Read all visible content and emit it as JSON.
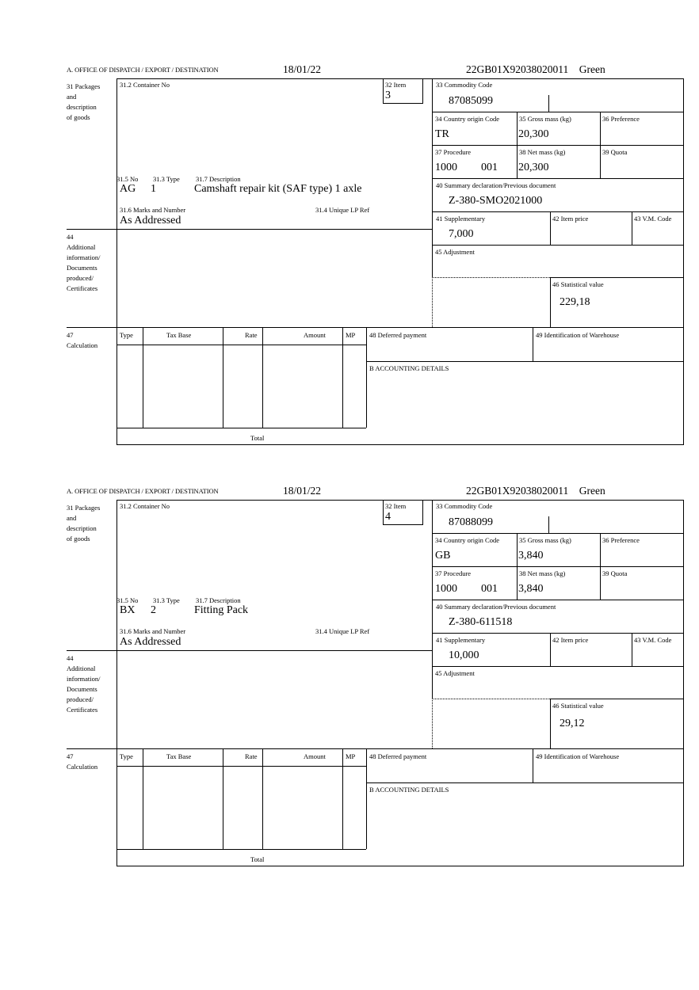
{
  "labels": {
    "office": "A.  OFFICE OF DISPATCH / EXPORT / DESTINATION",
    "packages": "31 Packages\nand\ndescription\nof goods",
    "container": "31.2 Container No",
    "item": "32 Item",
    "commodity": "33 Commodity Code",
    "country": "34 Country origin Code",
    "gross": "35 Gross mass (kg)",
    "preference": "36 Preference",
    "procedure": "37 Procedure",
    "net": "38 Net mass (kg)",
    "quota": "39 Quota",
    "summary": "40 Summary declaration/Previous document",
    "supplementary": "41 Supplementary",
    "item_price": "42 Item price",
    "vm_code": "43 V.M. Code",
    "adjustment": "45 Adjustment",
    "statistical": "46 Statistical value",
    "no": "31.5 No",
    "type": "31.3 Type",
    "description": "31.7 Description",
    "marks": "31.6 Marks and Number",
    "unique_ref": "31.4 Unique LP Ref",
    "additional": "44\nAdditional\ninformation/\nDocuments\nproduced/\nCertificates",
    "calculation": "47\nCalculation",
    "calc_type": "Type",
    "calc_tax_base": "Tax Base",
    "calc_rate": "Rate",
    "calc_amount": "Amount",
    "calc_mp": "MP",
    "deferred": "48 Deferred payment",
    "warehouse": "49 Identification of Warehouse",
    "accounting": "B ACCOUNTING DETAILS",
    "total": "Total"
  },
  "forms": [
    {
      "date": "18/01/22",
      "reference": "22GB01X92038020011    Green",
      "item": "3",
      "commodity_code": "87085099",
      "country_origin": "TR",
      "gross_mass": "20,300",
      "procedure_a": "1000",
      "procedure_b": "001",
      "net_mass": "20,300",
      "summary_doc": "Z-380-SMO2021000",
      "supplementary": "7,000",
      "statistical_value": "229,18",
      "pkg_no": "AG",
      "pkg_type": "1",
      "description": "Camshaft repair kit (SAF type) 1 axle",
      "marks": "As Addressed"
    },
    {
      "date": "18/01/22",
      "reference": "22GB01X92038020011    Green",
      "item": "4",
      "commodity_code": "87088099",
      "country_origin": "GB",
      "gross_mass": "3,840",
      "procedure_a": "1000",
      "procedure_b": "001",
      "net_mass": "3,840",
      "summary_doc": "Z-380-611518",
      "supplementary": "10,000",
      "statistical_value": "29,12",
      "pkg_no": "BX",
      "pkg_type": "2",
      "description": "Fitting Pack",
      "marks": "As Addressed"
    }
  ]
}
